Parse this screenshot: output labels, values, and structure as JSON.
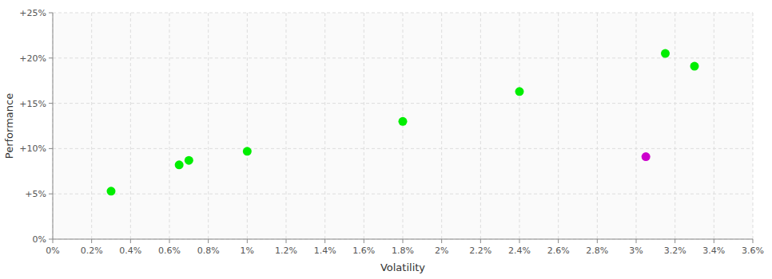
{
  "chart_data": {
    "type": "scatter",
    "x": [
      0.003,
      0.0065,
      0.007,
      0.01,
      0.018,
      0.024,
      0.0305,
      0.0315,
      0.033
    ],
    "values": [
      0.053,
      0.082,
      0.087,
      0.097,
      0.13,
      0.163,
      0.091,
      0.205,
      0.191
    ],
    "colors": [
      "#00ee00",
      "#00ee00",
      "#00ee00",
      "#00ee00",
      "#00ee00",
      "#00ee00",
      "#cc00cc",
      "#00ee00",
      "#00ee00"
    ],
    "xlim": [
      0.0,
      0.036
    ],
    "ylim": [
      0.0,
      0.25
    ],
    "xticks": [
      {
        "value": 0.0,
        "label": "0%"
      },
      {
        "value": 0.002,
        "label": "0.2%"
      },
      {
        "value": 0.004,
        "label": "0.4%"
      },
      {
        "value": 0.006,
        "label": "0.6%"
      },
      {
        "value": 0.008,
        "label": "0.8%"
      },
      {
        "value": 0.01,
        "label": "1%"
      },
      {
        "value": 0.012,
        "label": "1.2%"
      },
      {
        "value": 0.014,
        "label": "1.4%"
      },
      {
        "value": 0.016,
        "label": "1.6%"
      },
      {
        "value": 0.018,
        "label": "1.8%"
      },
      {
        "value": 0.02,
        "label": "2%"
      },
      {
        "value": 0.022,
        "label": "2.2%"
      },
      {
        "value": 0.024,
        "label": "2.4%"
      },
      {
        "value": 0.026,
        "label": "2.6%"
      },
      {
        "value": 0.028,
        "label": "2.8%"
      },
      {
        "value": 0.03,
        "label": "3%"
      },
      {
        "value": 0.032,
        "label": "3.2%"
      },
      {
        "value": 0.034,
        "label": "3.4%"
      },
      {
        "value": 0.036,
        "label": "3.6%"
      }
    ],
    "yticks": [
      {
        "value": 0.0,
        "label": "0%"
      },
      {
        "value": 0.05,
        "label": "+5%"
      },
      {
        "value": 0.1,
        "label": "+10%"
      },
      {
        "value": 0.15,
        "label": "+15%"
      },
      {
        "value": 0.2,
        "label": "+20%"
      },
      {
        "value": 0.25,
        "label": "+25%"
      }
    ],
    "xlabel": "Volatility",
    "ylabel": "Performance",
    "grid": true
  }
}
